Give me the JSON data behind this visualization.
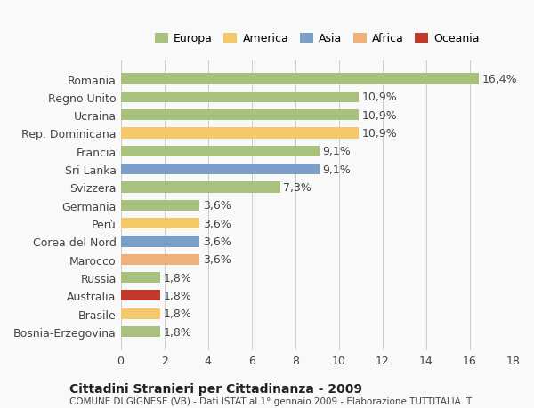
{
  "countries": [
    "Romania",
    "Regno Unito",
    "Ucraina",
    "Rep. Dominicana",
    "Francia",
    "Sri Lanka",
    "Svizzera",
    "Germania",
    "Perù",
    "Corea del Nord",
    "Marocco",
    "Russia",
    "Australia",
    "Brasile",
    "Bosnia-Erzegovina"
  ],
  "values": [
    16.4,
    10.9,
    10.9,
    10.9,
    9.1,
    9.1,
    7.3,
    3.6,
    3.6,
    3.6,
    3.6,
    1.8,
    1.8,
    1.8,
    1.8
  ],
  "labels": [
    "16,4%",
    "10,9%",
    "10,9%",
    "10,9%",
    "9,1%",
    "9,1%",
    "7,3%",
    "3,6%",
    "3,6%",
    "3,6%",
    "3,6%",
    "1,8%",
    "1,8%",
    "1,8%",
    "1,8%"
  ],
  "colors": [
    "#a8c17c",
    "#a8c17c",
    "#a8c17c",
    "#f5c96a",
    "#a8c17c",
    "#7b9fc7",
    "#a8c17c",
    "#a8c17c",
    "#f5c96a",
    "#7b9fc7",
    "#f0b07a",
    "#a8c17c",
    "#c0392b",
    "#f5c96a",
    "#a8c17c"
  ],
  "legend": [
    {
      "label": "Europa",
      "color": "#a8c17c"
    },
    {
      "label": "America",
      "color": "#f5c96a"
    },
    {
      "label": "Asia",
      "color": "#7b9fc7"
    },
    {
      "label": "Africa",
      "color": "#f0b07a"
    },
    {
      "label": "Oceania",
      "color": "#c0392b"
    }
  ],
  "xlim": [
    0,
    18
  ],
  "xticks": [
    0,
    2,
    4,
    6,
    8,
    10,
    12,
    14,
    16,
    18
  ],
  "title": "Cittadini Stranieri per Cittadinanza - 2009",
  "subtitle": "COMUNE DI GIGNESE (VB) - Dati ISTAT al 1° gennaio 2009 - Elaborazione TUTTITALIA.IT",
  "background_color": "#f9f9f9",
  "bar_height": 0.6,
  "grid_color": "#cccccc",
  "label_fontsize": 9,
  "tick_fontsize": 9
}
